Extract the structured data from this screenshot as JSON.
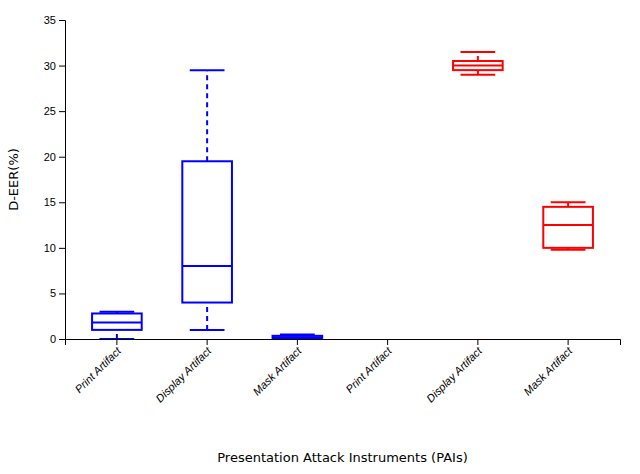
{
  "chart_data": {
    "type": "box",
    "xlabel": "Presentation Attack Instruments (PAIs)",
    "ylabel": "D-EER(%)",
    "categories": [
      "Print Artifact",
      "Display Artifact",
      "Mask Artifact",
      "Print Artifact",
      "Display Artifact",
      "Mask Artifact"
    ],
    "whislo": [
      0.0,
      1.0,
      0.0,
      null,
      29.0,
      9.8
    ],
    "q1": [
      1.0,
      4.0,
      0.0,
      null,
      29.5,
      10.0
    ],
    "med": [
      1.8,
      8.0,
      0.2,
      null,
      30.0,
      12.5
    ],
    "q3": [
      2.8,
      19.5,
      0.35,
      null,
      30.5,
      14.5
    ],
    "whishi": [
      3.0,
      29.5,
      0.5,
      null,
      31.5,
      15.0
    ],
    "colors": [
      "#0000FF",
      "#0000FF",
      "#0000FF",
      null,
      "#FF0000",
      "#FF0000"
    ],
    "ylim": [
      0,
      35
    ],
    "yticks": [
      0,
      5,
      10,
      15,
      20,
      25,
      30,
      35
    ],
    "grid": false
  }
}
